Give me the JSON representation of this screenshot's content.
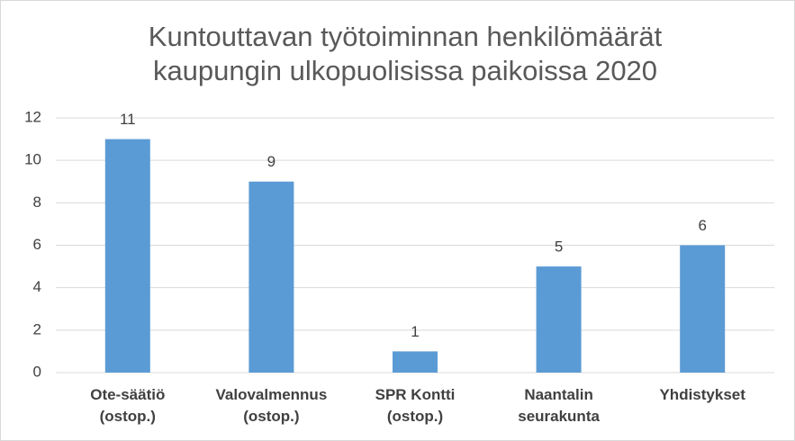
{
  "chart_data": {
    "type": "bar",
    "title": "Kuntouttavan työtoiminnan henkilömäärät kaupungin ulkopuolisissa paikoissa 2020",
    "categories": [
      "Ote-säätiö (ostop.)",
      "Valovalmennus (ostop.)",
      "SPR Kontti (ostop.)",
      "Naantalin seurakunta",
      "Yhdistykset"
    ],
    "values": [
      11,
      9,
      1,
      5,
      6
    ],
    "color": "#5b9bd5",
    "ylim": [
      0,
      12
    ],
    "yticks": [
      0,
      2,
      4,
      6,
      8,
      10,
      12
    ],
    "grid": true
  }
}
